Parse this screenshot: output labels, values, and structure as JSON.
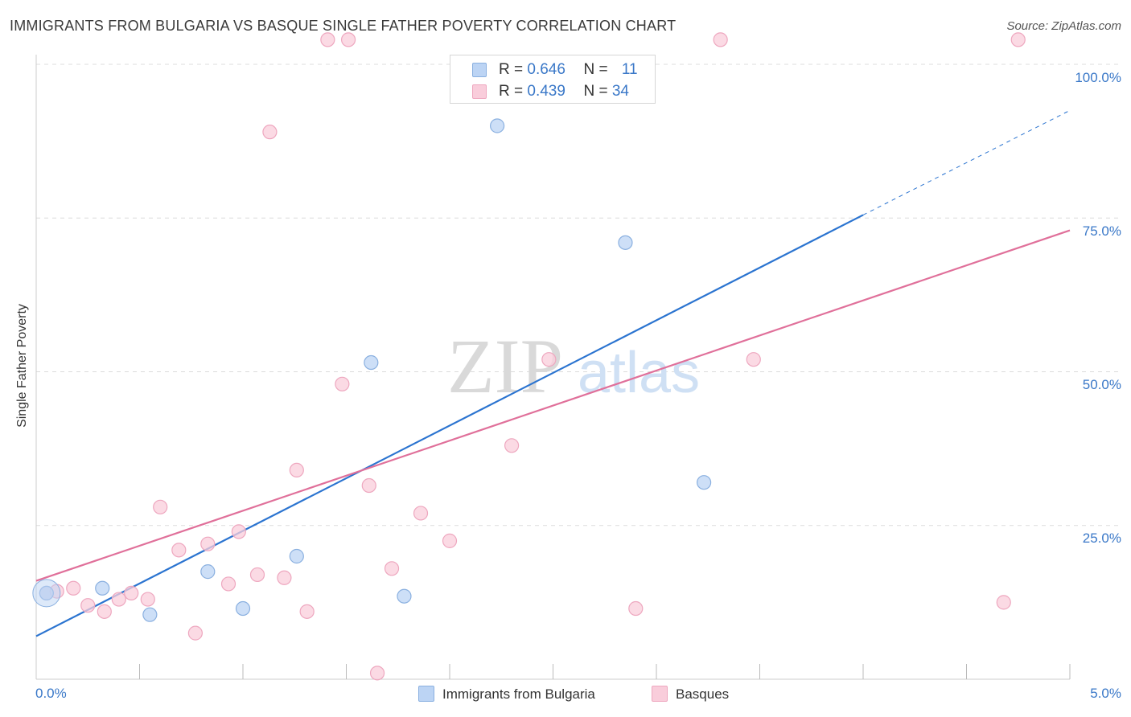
{
  "title": "IMMIGRANTS FROM BULGARIA VS BASQUE SINGLE FATHER POVERTY CORRELATION CHART",
  "source": "Source: ZipAtlas.com",
  "watermark": {
    "zip": "ZIP",
    "atlas": "atlas"
  },
  "legend_top": [
    {
      "r_label": "R = ",
      "r_value": "0.646",
      "n_label": "N = ",
      "n_value": "11"
    },
    {
      "r_label": "R = ",
      "r_value": "0.439",
      "n_label": "N = ",
      "n_value": "34"
    }
  ],
  "colors": {
    "bulgaria_fill": "#bcd4f4",
    "bulgaria_stroke": "#8ab0e0",
    "bulgaria_line": "#2b74d0",
    "basque_fill": "#f9cddb",
    "basque_stroke": "#eea7bf",
    "basque_line": "#e0709a",
    "tick_text": "#3a78c8",
    "grid": "#dcdcdc"
  },
  "chart_data": {
    "type": "scatter",
    "title": "IMMIGRANTS FROM BULGARIA VS BASQUE SINGLE FATHER POVERTY CORRELATION CHART",
    "xlabel": "",
    "ylabel": "Single Father Poverty",
    "xlim": [
      0,
      5
    ],
    "ylim": [
      0,
      100
    ],
    "x_tick_labels": [
      "0.0%",
      "5.0%"
    ],
    "y_ticks": [
      25,
      50,
      75,
      100
    ],
    "y_tick_labels": [
      "25.0%",
      "50.0%",
      "75.0%",
      "100.0%"
    ],
    "grid": true,
    "legend_position": "bottom",
    "series": [
      {
        "name": "Immigrants from Bulgaria",
        "points": [
          [
            0.05,
            14.0
          ],
          [
            0.32,
            14.8
          ],
          [
            0.55,
            10.5
          ],
          [
            0.83,
            17.5
          ],
          [
            1.0,
            11.5
          ],
          [
            1.26,
            20.0
          ],
          [
            1.62,
            51.5
          ],
          [
            1.78,
            13.5
          ],
          [
            2.23,
            90.0
          ],
          [
            2.85,
            71.0
          ],
          [
            3.23,
            32.0
          ]
        ],
        "trend": {
          "x0": 0.0,
          "y0": 7.0,
          "x1": 4.0,
          "y1": 75.5,
          "x_dashed_end": 5.0,
          "y_dashed_end": 92.5
        }
      },
      {
        "name": "Basques",
        "points": [
          [
            0.05,
            14.0
          ],
          [
            0.1,
            14.3
          ],
          [
            0.18,
            14.8
          ],
          [
            0.25,
            12.0
          ],
          [
            0.33,
            11.0
          ],
          [
            0.4,
            13.0
          ],
          [
            0.46,
            14.0
          ],
          [
            0.54,
            13.0
          ],
          [
            0.6,
            28.0
          ],
          [
            0.69,
            21.0
          ],
          [
            0.77,
            7.5
          ],
          [
            0.83,
            22.0
          ],
          [
            0.93,
            15.5
          ],
          [
            0.98,
            24.0
          ],
          [
            1.07,
            17.0
          ],
          [
            1.13,
            89.0
          ],
          [
            1.2,
            16.5
          ],
          [
            1.26,
            34.0
          ],
          [
            1.31,
            11.0
          ],
          [
            1.41,
            104.0
          ],
          [
            1.48,
            48.0
          ],
          [
            1.51,
            104.0
          ],
          [
            1.61,
            31.5
          ],
          [
            1.65,
            1.0
          ],
          [
            1.72,
            18.0
          ],
          [
            1.86,
            27.0
          ],
          [
            2.0,
            22.5
          ],
          [
            2.3,
            38.0
          ],
          [
            2.48,
            52.0
          ],
          [
            2.9,
            11.5
          ],
          [
            3.31,
            104.0
          ],
          [
            3.47,
            52.0
          ],
          [
            4.68,
            12.5
          ],
          [
            4.75,
            104.0
          ]
        ],
        "trend": {
          "x0": 0.0,
          "y0": 16.0,
          "x1": 5.0,
          "y1": 73.0
        }
      }
    ]
  }
}
